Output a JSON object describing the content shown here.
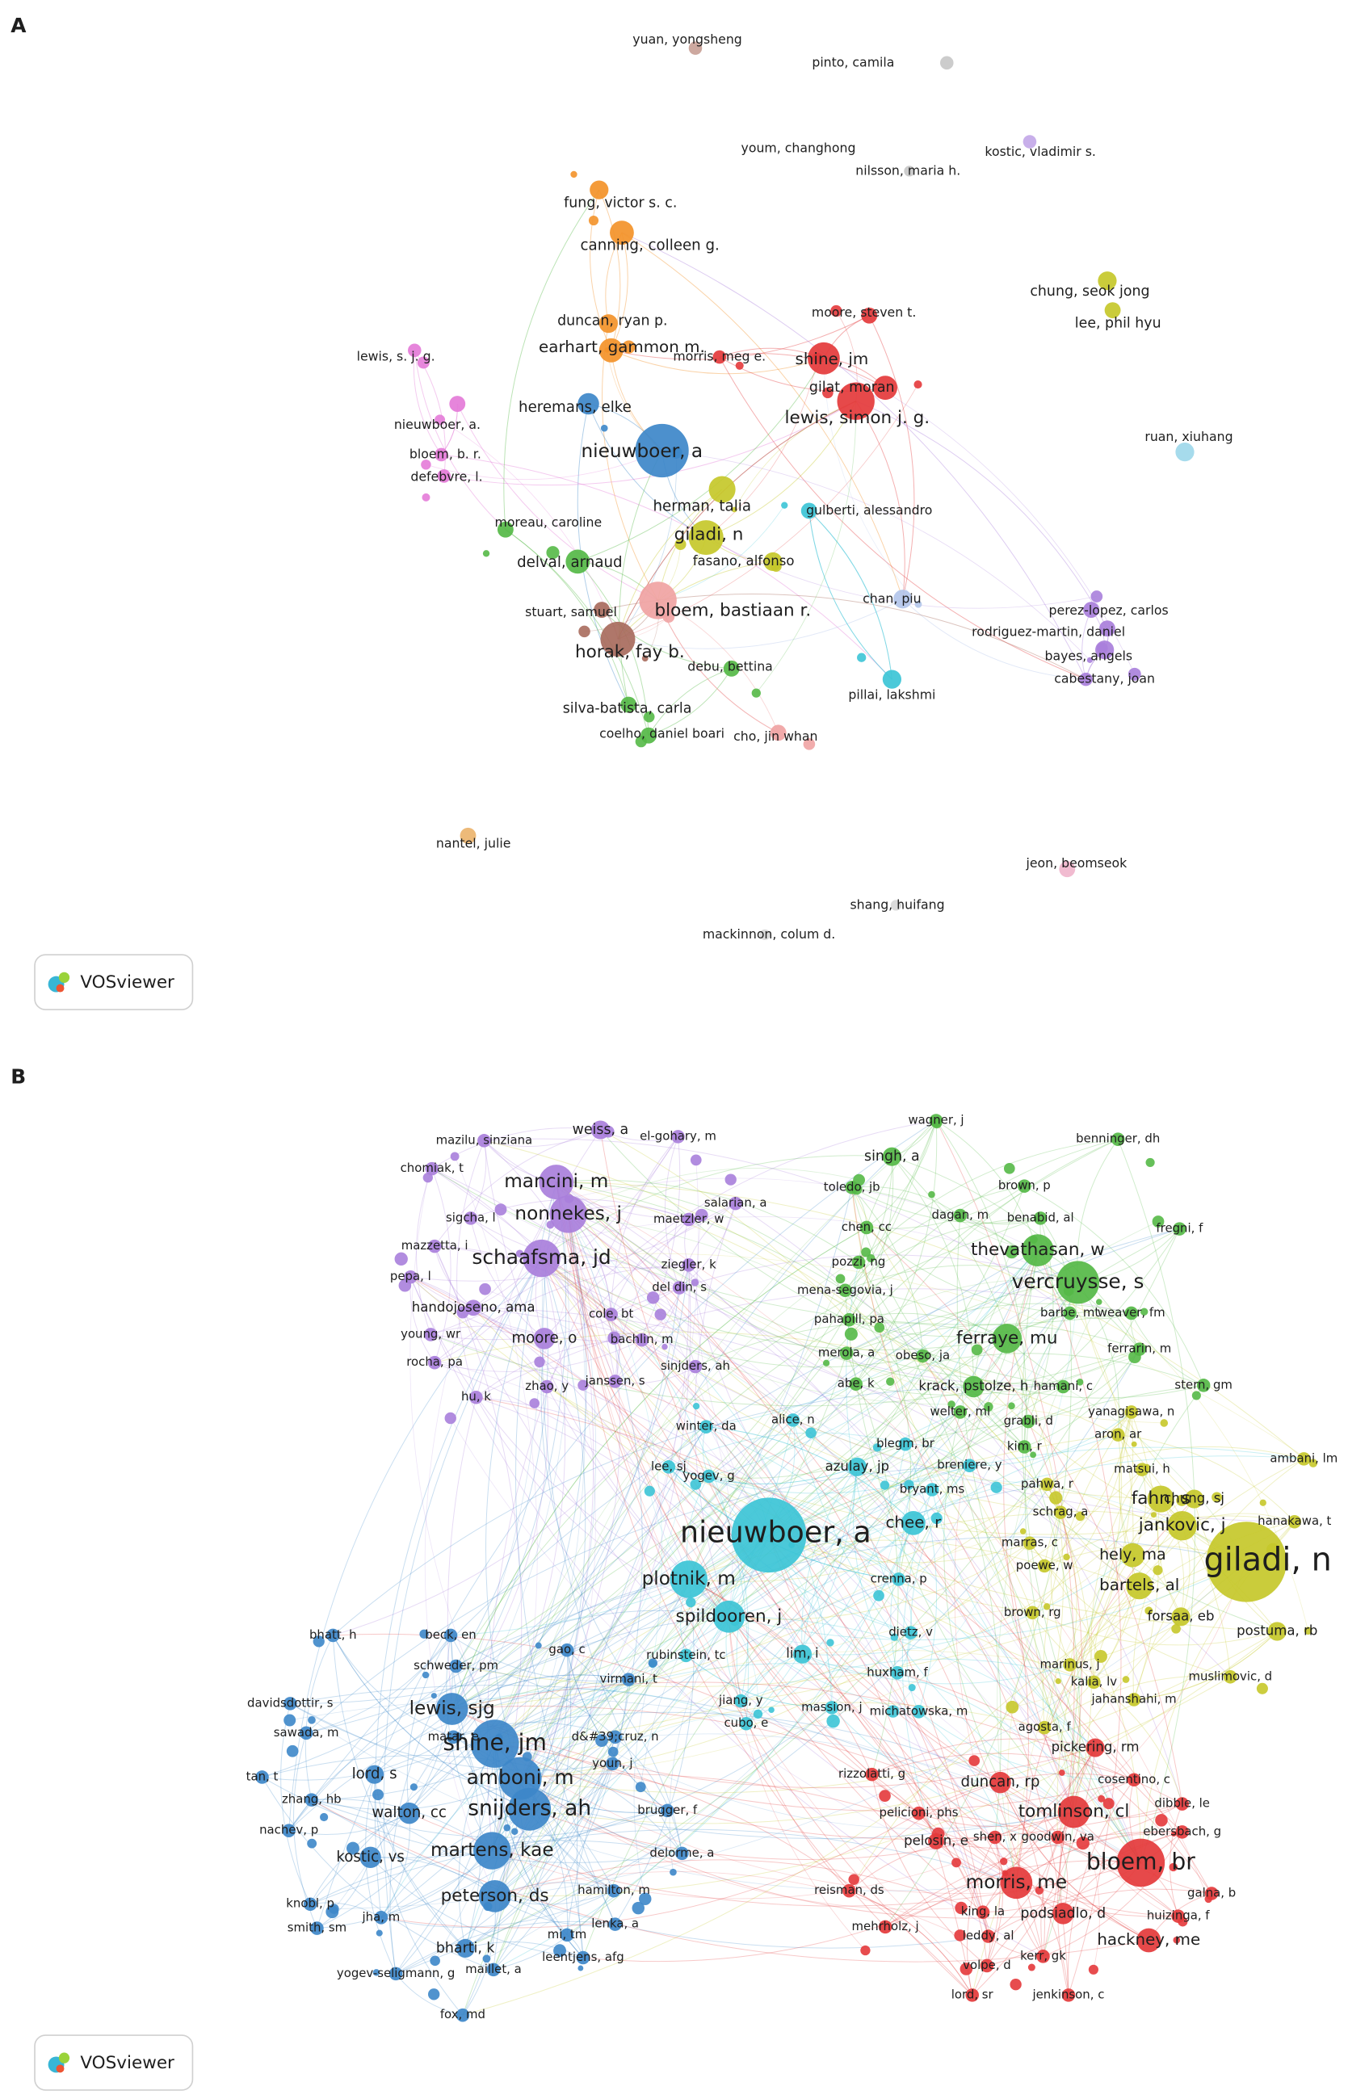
{
  "panels": [
    {
      "label": "A",
      "logo": "VOSviewer",
      "nodes": [
        {
          "label": "yuan, yongsheng",
          "color": "#c9a197"
        },
        {
          "label": "pinto, camila",
          "color": "#c8c8c8"
        },
        {
          "label": "youm, changhong",
          "color": "#c8c8c8"
        },
        {
          "label": "kostic, vladimir s.",
          "color": "#c3a8e8"
        },
        {
          "label": "nilsson, maria h.",
          "color": "#c8c8c8"
        },
        {
          "label": "fung, victor s. c.",
          "color": "#f39229"
        },
        {
          "label": "canning, colleen g.",
          "color": "#f39229"
        },
        {
          "label": "chung, seok jong",
          "color": "#c6c82a"
        },
        {
          "label": "duncan, ryan p.",
          "color": "#f39229"
        },
        {
          "label": "moore, steven t.",
          "color": "#e4393b"
        },
        {
          "label": "lee, phil hyu",
          "color": "#c6c82a"
        },
        {
          "label": "earhart, gammon m.",
          "color": "#f39229"
        },
        {
          "label": "morris, meg e.",
          "color": "#e4393b"
        },
        {
          "label": "shine, jm",
          "color": "#e4393b"
        },
        {
          "label": "lewis, s. j. g.",
          "color": "#e47bd8"
        },
        {
          "label": "gilat, moran",
          "color": "#e4393b"
        },
        {
          "label": "lewis, simon j. g.",
          "color": "#e4393b"
        },
        {
          "label": "heremans, elke",
          "color": "#3d87c9"
        },
        {
          "label": "nieuwboer, a.",
          "color": "#e47bd8"
        },
        {
          "label": "nieuwboer, a",
          "color": "#3d87c9"
        },
        {
          "label": "ruan, xiuhang",
          "color": "#9ed8ea"
        },
        {
          "label": "bloem, b. r.",
          "color": "#e47bd8"
        },
        {
          "label": "defebvre, l.",
          "color": "#e47bd8"
        },
        {
          "label": "herman, talia",
          "color": "#c6c82a"
        },
        {
          "label": "gulberti, alessandro",
          "color": "#3cc4d6"
        },
        {
          "label": "moreau, caroline",
          "color": "#55b947"
        },
        {
          "label": "giladi, n",
          "color": "#c6c82a"
        },
        {
          "label": "delval, arnaud",
          "color": "#55b947"
        },
        {
          "label": "fasano, alfonso",
          "color": "#c6c82a"
        },
        {
          "label": "chan, piu",
          "color": "#b3c6ea"
        },
        {
          "label": "perez-lopez, carlos",
          "color": "#a97fdb"
        },
        {
          "label": "stuart, samuel",
          "color": "#a86b5d"
        },
        {
          "label": "bloem, bastiaan r.",
          "color": "#f0a3a3"
        },
        {
          "label": "rodriguez-martin, daniel",
          "color": "#a97fdb"
        },
        {
          "label": "horak, fay b.",
          "color": "#a86b5d"
        },
        {
          "label": "bayes, angels",
          "color": "#a97fdb"
        },
        {
          "label": "debu, bettina",
          "color": "#55b947"
        },
        {
          "label": "cabestany, joan",
          "color": "#a97fdb"
        },
        {
          "label": "pillai, lakshmi",
          "color": "#3cc4d6"
        },
        {
          "label": "silva-batista, carla",
          "color": "#55b947"
        },
        {
          "label": "coelho, daniel boari",
          "color": "#55b947"
        },
        {
          "label": "cho, jin whan",
          "color": "#f0a3a3"
        },
        {
          "label": "nantel, julie",
          "color": "#ecb46e"
        },
        {
          "label": "jeon, beomseok",
          "color": "#f0b5cc"
        },
        {
          "label": "shang, huifang",
          "color": "#d8d8d8"
        },
        {
          "label": "mackinnon, colum d.",
          "color": "#d8d8d8"
        }
      ]
    },
    {
      "label": "B",
      "logo": "VOSviewer",
      "nodes": [
        {
          "label": "weiss, a",
          "color": "#a97fdb"
        },
        {
          "label": "el-gohary, m",
          "color": "#a97fdb"
        },
        {
          "label": "mazilu, sinziana",
          "color": "#a97fdb"
        },
        {
          "label": "chomiak, t",
          "color": "#a97fdb"
        },
        {
          "label": "mancini, m",
          "color": "#a97fdb"
        },
        {
          "label": "salarian, a",
          "color": "#a97fdb"
        },
        {
          "label": "nonnekes, j",
          "color": "#a97fdb"
        },
        {
          "label": "sigcha, l",
          "color": "#a97fdb"
        },
        {
          "label": "maetzler, w",
          "color": "#a97fdb"
        },
        {
          "label": "mazzetta, i",
          "color": "#a97fdb"
        },
        {
          "label": "schaafsma, jd",
          "color": "#a97fdb"
        },
        {
          "label": "ziegler, k",
          "color": "#a97fdb"
        },
        {
          "label": "pepa, l",
          "color": "#a97fdb"
        },
        {
          "label": "del din, s",
          "color": "#a97fdb"
        },
        {
          "label": "handojoseno, ama",
          "color": "#a97fdb"
        },
        {
          "label": "cole, bt",
          "color": "#a97fdb"
        },
        {
          "label": "bachlin, m",
          "color": "#a97fdb"
        },
        {
          "label": "young, wr",
          "color": "#a97fdb"
        },
        {
          "label": "moore, o",
          "color": "#a97fdb"
        },
        {
          "label": "rocha, pa",
          "color": "#a97fdb"
        },
        {
          "label": "sinjders, ah",
          "color": "#a97fdb"
        },
        {
          "label": "janssen, s",
          "color": "#a97fdb"
        },
        {
          "label": "zhao, y",
          "color": "#a97fdb"
        },
        {
          "label": "hu, k",
          "color": "#a97fdb"
        },
        {
          "label": "wagner, j",
          "color": "#55b947"
        },
        {
          "label": "benninger, dh",
          "color": "#55b947"
        },
        {
          "label": "singh, a",
          "color": "#55b947"
        },
        {
          "label": "brown, p",
          "color": "#55b947"
        },
        {
          "label": "toledo, jb",
          "color": "#55b947"
        },
        {
          "label": "dagan, m",
          "color": "#55b947"
        },
        {
          "label": "benabid, al",
          "color": "#55b947"
        },
        {
          "label": "fregni, f",
          "color": "#55b947"
        },
        {
          "label": "chen, cc",
          "color": "#55b947"
        },
        {
          "label": "thevathasan, w",
          "color": "#55b947"
        },
        {
          "label": "pozzi, ng",
          "color": "#55b947"
        },
        {
          "label": "vercruysse, s",
          "color": "#55b947"
        },
        {
          "label": "mena-segovia, j",
          "color": "#55b947"
        },
        {
          "label": "weaver, fm",
          "color": "#55b947"
        },
        {
          "label": "barbe, mt",
          "color": "#55b947"
        },
        {
          "label": "pahapill, pa",
          "color": "#55b947"
        },
        {
          "label": "ferraye, mu",
          "color": "#55b947"
        },
        {
          "label": "ferrarin, m",
          "color": "#55b947"
        },
        {
          "label": "merola, a",
          "color": "#55b947"
        },
        {
          "label": "obeso, ja",
          "color": "#55b947"
        },
        {
          "label": "abe, k",
          "color": "#55b947"
        },
        {
          "label": "krack, pstolze, h",
          "color": "#55b947"
        },
        {
          "label": "hamani, c",
          "color": "#55b947"
        },
        {
          "label": "welter, ml",
          "color": "#55b947"
        },
        {
          "label": "grabli, d",
          "color": "#55b947"
        },
        {
          "label": "kim, r",
          "color": "#55b947"
        },
        {
          "label": "stern, gm",
          "color": "#55b947"
        },
        {
          "label": "yanagisawa, n",
          "color": "#c6c82a"
        },
        {
          "label": "aron, ar",
          "color": "#c6c82a"
        },
        {
          "label": "matsui, h",
          "color": "#c6c82a"
        },
        {
          "label": "ambani, lm",
          "color": "#c6c82a"
        },
        {
          "label": "chung, sj",
          "color": "#c6c82a"
        },
        {
          "label": "pahwa, r",
          "color": "#c6c82a"
        },
        {
          "label": "fahn, s",
          "color": "#c6c82a"
        },
        {
          "label": "schrag, a",
          "color": "#c6c82a"
        },
        {
          "label": "jankovic, j",
          "color": "#c6c82a"
        },
        {
          "label": "hanakawa, t",
          "color": "#c6c82a"
        },
        {
          "label": "marras, c",
          "color": "#c6c82a"
        },
        {
          "label": "hely, ma",
          "color": "#c6c82a"
        },
        {
          "label": "poewe, w",
          "color": "#c6c82a"
        },
        {
          "label": "giladi, n",
          "color": "#c6c82a"
        },
        {
          "label": "bartels, al",
          "color": "#c6c82a"
        },
        {
          "label": "brown, rg",
          "color": "#c6c82a"
        },
        {
          "label": "forsaa, eb",
          "color": "#c6c82a"
        },
        {
          "label": "postuma, rb",
          "color": "#c6c82a"
        },
        {
          "label": "marinus, j",
          "color": "#c6c82a"
        },
        {
          "label": "kalia, lv",
          "color": "#c6c82a"
        },
        {
          "label": "muslimovic, d",
          "color": "#c6c82a"
        },
        {
          "label": "jahanshahi, m",
          "color": "#c6c82a"
        },
        {
          "label": "agosta, f",
          "color": "#c6c82a"
        },
        {
          "label": "winter, da",
          "color": "#3cc4d6"
        },
        {
          "label": "alice, n",
          "color": "#3cc4d6"
        },
        {
          "label": "blegm, br",
          "color": "#3cc4d6"
        },
        {
          "label": "lee, sj",
          "color": "#3cc4d6"
        },
        {
          "label": "breniere, y",
          "color": "#3cc4d6"
        },
        {
          "label": "yogev, g",
          "color": "#3cc4d6"
        },
        {
          "label": "azulay, jp",
          "color": "#3cc4d6"
        },
        {
          "label": "bryant, ms",
          "color": "#3cc4d6"
        },
        {
          "label": "chee, r",
          "color": "#3cc4d6"
        },
        {
          "label": "nieuwboer, a",
          "color": "#3cc4d6"
        },
        {
          "label": "plotnik, m",
          "color": "#3cc4d6"
        },
        {
          "label": "crenna, p",
          "color": "#3cc4d6"
        },
        {
          "label": "spildooren, j",
          "color": "#3cc4d6"
        },
        {
          "label": "dietz, v",
          "color": "#3cc4d6"
        },
        {
          "label": "lim, i",
          "color": "#3cc4d6"
        },
        {
          "label": "huxham, f",
          "color": "#3cc4d6"
        },
        {
          "label": "massion, j",
          "color": "#3cc4d6"
        },
        {
          "label": "jiang, y",
          "color": "#3cc4d6"
        },
        {
          "label": "cubo, e",
          "color": "#3cc4d6"
        },
        {
          "label": "michatowska, m",
          "color": "#3cc4d6"
        },
        {
          "label": "rubinstein, tc",
          "color": "#3cc4d6"
        },
        {
          "label": "gao, c",
          "color": "#3d87c9"
        },
        {
          "label": "virmani, t",
          "color": "#3d87c9"
        },
        {
          "label": "d&#39;cruz, n",
          "color": "#3d87c9"
        },
        {
          "label": "youn, j",
          "color": "#3d87c9"
        },
        {
          "label": "brugger, f",
          "color": "#3d87c9"
        },
        {
          "label": "delorme, a",
          "color": "#3d87c9"
        },
        {
          "label": "hamilton, m",
          "color": "#3d87c9"
        },
        {
          "label": "lenka, a",
          "color": "#3d87c9"
        },
        {
          "label": "mi, tm",
          "color": "#3d87c9"
        },
        {
          "label": "leentjens, afg",
          "color": "#3d87c9"
        },
        {
          "label": "bhatt, h",
          "color": "#3d87c9"
        },
        {
          "label": "beck, en",
          "color": "#3d87c9"
        },
        {
          "label": "schweder, pm",
          "color": "#3d87c9"
        },
        {
          "label": "davidsdottir, s",
          "color": "#3d87c9"
        },
        {
          "label": "lewis, sjg",
          "color": "#3d87c9"
        },
        {
          "label": "sawada, m",
          "color": "#3d87c9"
        },
        {
          "label": "matar, e",
          "color": "#3d87c9"
        },
        {
          "label": "shine, jm",
          "color": "#3d87c9"
        },
        {
          "label": "tan, t",
          "color": "#3d87c9"
        },
        {
          "label": "lord, s",
          "color": "#3d87c9"
        },
        {
          "label": "amboni, m",
          "color": "#3d87c9"
        },
        {
          "label": "zhang, hb",
          "color": "#3d87c9"
        },
        {
          "label": "snijders, ah",
          "color": "#3d87c9"
        },
        {
          "label": "walton, cc",
          "color": "#3d87c9"
        },
        {
          "label": "nachev, p",
          "color": "#3d87c9"
        },
        {
          "label": "kostic, vs",
          "color": "#3d87c9"
        },
        {
          "label": "martens, kae",
          "color": "#3d87c9"
        },
        {
          "label": "knobl, p",
          "color": "#3d87c9"
        },
        {
          "label": "peterson, ds",
          "color": "#3d87c9"
        },
        {
          "label": "jha, m",
          "color": "#3d87c9"
        },
        {
          "label": "smith, sm",
          "color": "#3d87c9"
        },
        {
          "label": "bharti, k",
          "color": "#3d87c9"
        },
        {
          "label": "yogev-seligmann, g",
          "color": "#3d87c9"
        },
        {
          "label": "maillet, a",
          "color": "#3d87c9"
        },
        {
          "label": "fox, md",
          "color": "#3d87c9"
        },
        {
          "label": "pickering, rm",
          "color": "#e4393b"
        },
        {
          "label": "cosentino, c",
          "color": "#e4393b"
        },
        {
          "label": "rizzolatti, g",
          "color": "#e4393b"
        },
        {
          "label": "duncan, rp",
          "color": "#e4393b"
        },
        {
          "label": "dibble, le",
          "color": "#e4393b"
        },
        {
          "label": "tomlinson, cl",
          "color": "#e4393b"
        },
        {
          "label": "pelicioni, phs",
          "color": "#e4393b"
        },
        {
          "label": "shen, x",
          "color": "#e4393b"
        },
        {
          "label": "goodwin, va",
          "color": "#e4393b"
        },
        {
          "label": "ebersbach, g",
          "color": "#e4393b"
        },
        {
          "label": "pelosin, e",
          "color": "#e4393b"
        },
        {
          "label": "bloem, br",
          "color": "#e4393b"
        },
        {
          "label": "morris, me",
          "color": "#e4393b"
        },
        {
          "label": "reisman, ds",
          "color": "#e4393b"
        },
        {
          "label": "galna, b",
          "color": "#e4393b"
        },
        {
          "label": "podsiadlo, d",
          "color": "#e4393b"
        },
        {
          "label": "huizinga, f",
          "color": "#e4393b"
        },
        {
          "label": "king, la",
          "color": "#e4393b"
        },
        {
          "label": "mehrholz, j",
          "color": "#e4393b"
        },
        {
          "label": "hackney, me",
          "color": "#e4393b"
        },
        {
          "label": "leddy, al",
          "color": "#e4393b"
        },
        {
          "label": "kerr, gk",
          "color": "#e4393b"
        },
        {
          "label": "volpe, d",
          "color": "#e4393b"
        },
        {
          "label": "jenkinson, c",
          "color": "#e4393b"
        },
        {
          "label": "lord, sr",
          "color": "#e4393b"
        }
      ]
    }
  ]
}
